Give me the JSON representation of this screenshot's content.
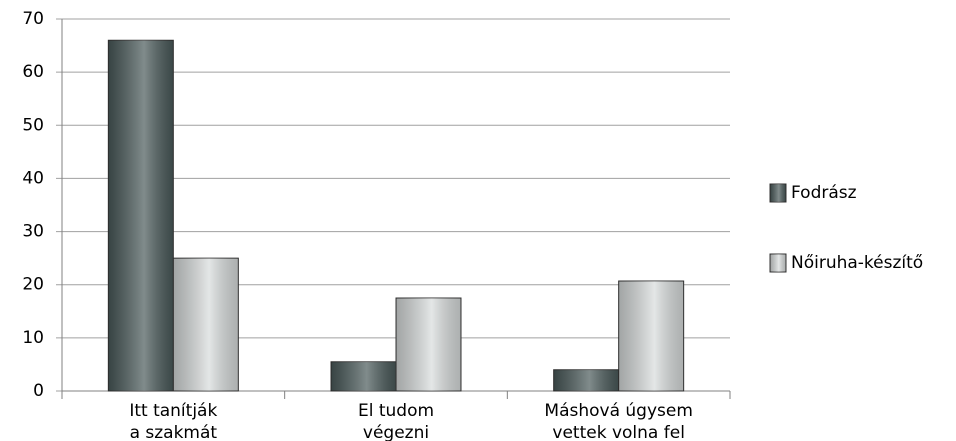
{
  "chart_data": {
    "type": "bar",
    "categories": [
      [
        "Itt tanítják",
        "a szakmát"
      ],
      [
        "El tudom",
        "végezni"
      ],
      [
        "Máshová úgysem",
        "vettek volna fel"
      ]
    ],
    "series": [
      {
        "name": "Fodrász",
        "color": "#4a5a5a",
        "values": [
          66,
          5.5,
          4
        ]
      },
      {
        "name": "Nőiruha-készítő",
        "color": "#d8dcdc",
        "values": [
          25,
          17.5,
          20.7
        ]
      }
    ],
    "ylim": [
      0,
      70
    ],
    "yticks": [
      0,
      10,
      20,
      30,
      40,
      50,
      60,
      70
    ],
    "grid": true,
    "legend": "right"
  }
}
